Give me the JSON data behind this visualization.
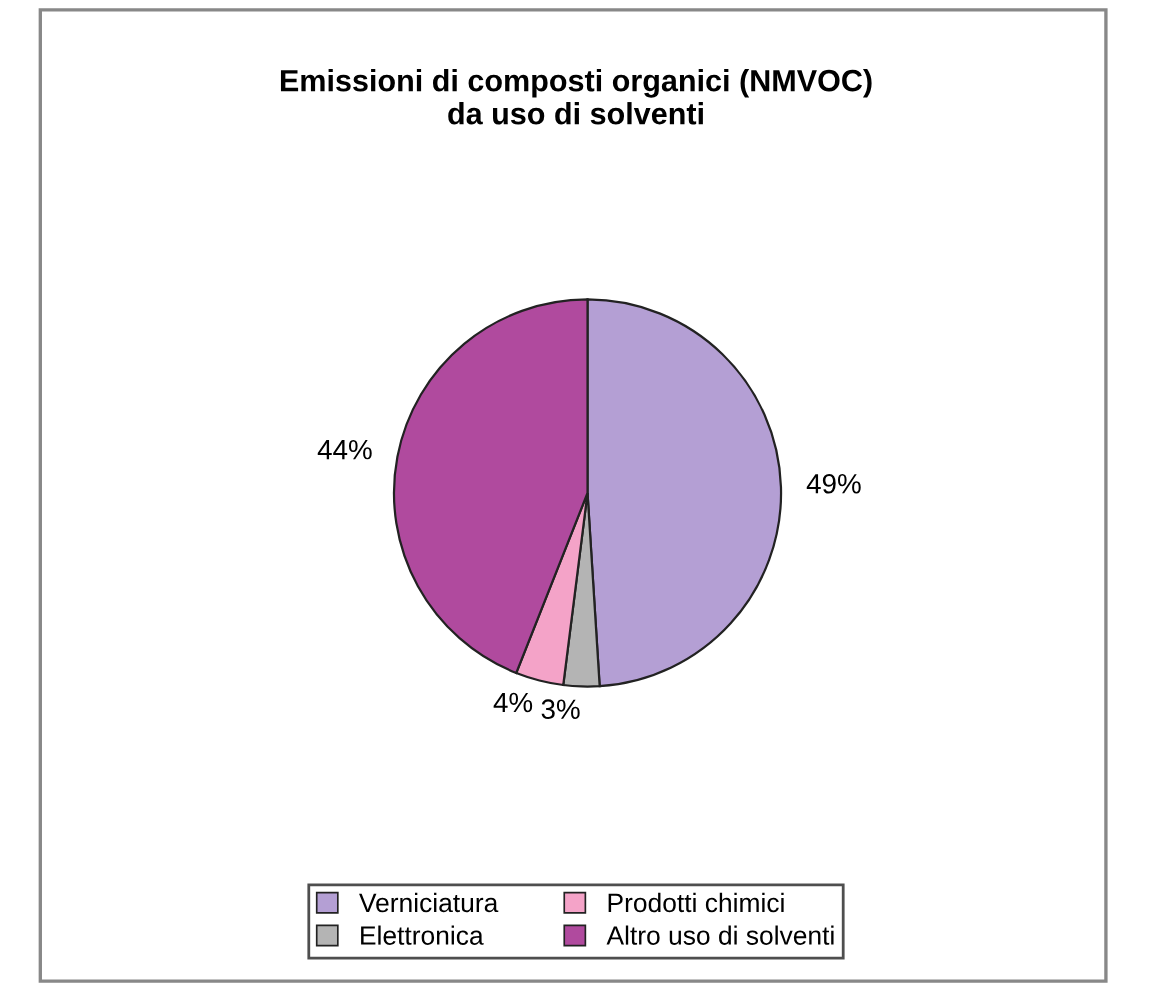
{
  "chart_data": {
    "type": "pie",
    "title": "Emissioni di composti organici (NMVOC)\nda uso di solventi",
    "categories": [
      "Verniciatura",
      "Elettronica",
      "Prodotti chimici",
      "Altro uso di solventi"
    ],
    "values": [
      49,
      3,
      4,
      44
    ],
    "colors": [
      "#b49fd4",
      "#b4b4b4",
      "#f4a3c8",
      "#b04a9e"
    ],
    "value_labels": [
      "49%",
      "3%",
      "4%",
      "44%"
    ],
    "legend": "bottom"
  }
}
